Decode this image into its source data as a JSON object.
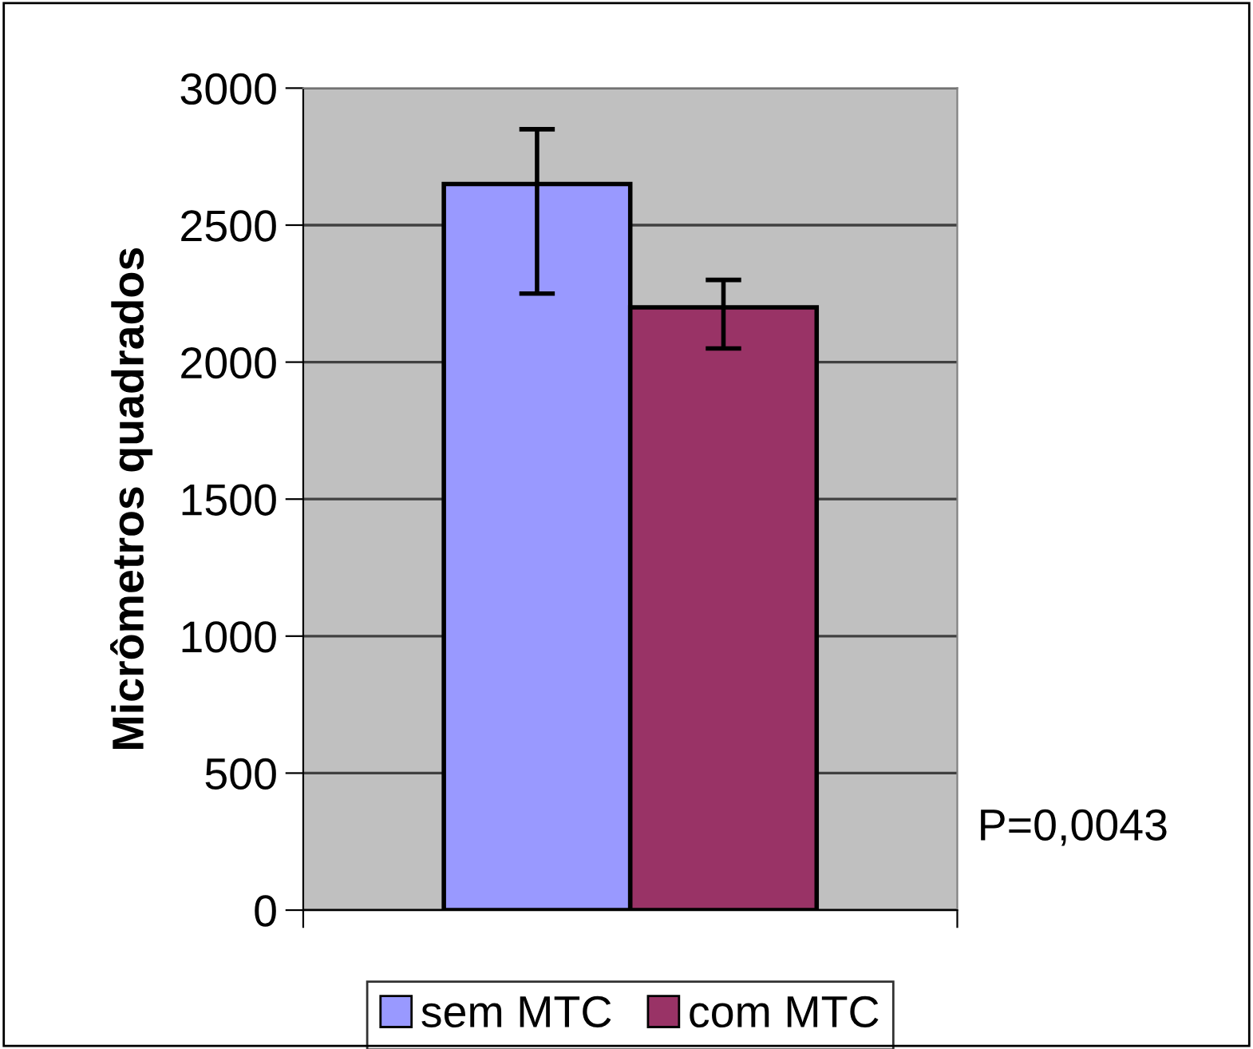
{
  "chart_data": {
    "type": "bar",
    "ylabel": "Micrômetros quadrados",
    "categories": [
      null
    ],
    "series": [
      {
        "name": "sem MTC",
        "color": "#9999ff",
        "values": [
          2650
        ],
        "errors": [
          [
            2250,
            2850
          ]
        ]
      },
      {
        "name": "com MTC",
        "color": "#993366",
        "values": [
          2200
        ],
        "errors": [
          [
            2050,
            2300
          ]
        ]
      }
    ],
    "ylim": [
      0,
      3000
    ],
    "yticks": [
      0,
      500,
      1000,
      1500,
      2000,
      2500,
      3000
    ],
    "grid": "y",
    "legend": "bottom",
    "annotations": [
      "P=0,0043"
    ]
  }
}
